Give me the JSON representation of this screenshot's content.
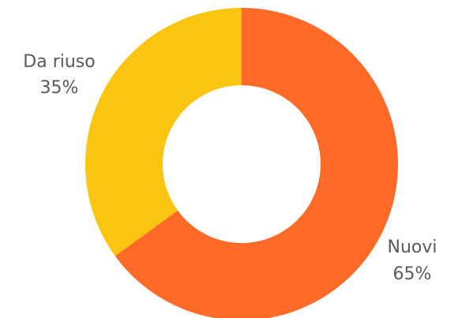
{
  "chart_data": {
    "type": "pie",
    "variant": "donut",
    "start_angle_deg": 0,
    "direction": "clockwise",
    "legend": "none",
    "slices": [
      {
        "label": "Nuovi",
        "value": 65,
        "display": "65%",
        "color": "#ff6a27"
      },
      {
        "label": "Da riuso",
        "value": 35,
        "display": "35%",
        "color": "#fbc40f"
      }
    ]
  }
}
